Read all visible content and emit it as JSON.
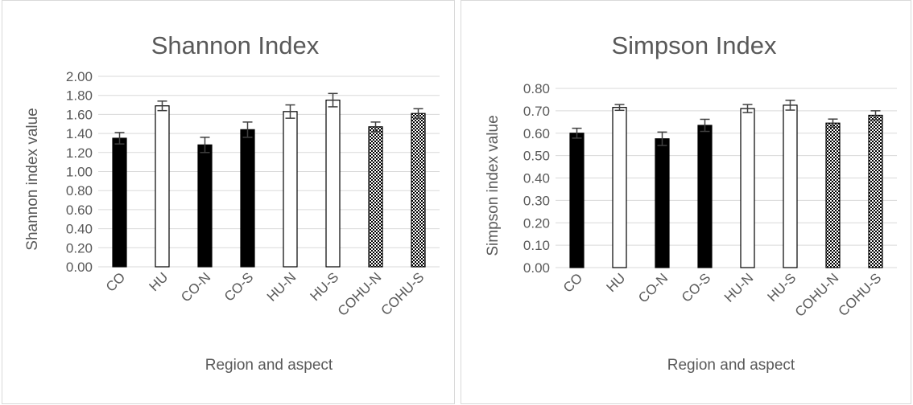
{
  "theme": {
    "text_color": "#595959",
    "grid_color": "#d9d9d9",
    "bar_color": "#000000",
    "error_bar_color": "#404040",
    "background": "#ffffff"
  },
  "chart_data": [
    {
      "type": "bar",
      "title": "Shannon Index",
      "xlabel": "Region and aspect",
      "ylabel": "Shannon index value",
      "categories": [
        "CO",
        "HU",
        "CO-N",
        "CO-S",
        "HU-N",
        "HU-S",
        "COHU-N",
        "COHU-S"
      ],
      "values": [
        1.35,
        1.69,
        1.28,
        1.44,
        1.63,
        1.75,
        1.47,
        1.61
      ],
      "error": [
        0.06,
        0.05,
        0.08,
        0.08,
        0.07,
        0.07,
        0.05,
        0.05
      ],
      "patterns": [
        "solid",
        "hollow",
        "solid",
        "solid",
        "hollow",
        "hollow",
        "checker",
        "checker"
      ],
      "ylim": [
        0,
        2
      ],
      "yticks": [
        "0.00",
        "0.20",
        "0.40",
        "0.60",
        "0.80",
        "1.00",
        "1.20",
        "1.40",
        "1.60",
        "1.80",
        "2.00"
      ],
      "grid": true,
      "legend": "none"
    },
    {
      "type": "bar",
      "title": "Simpson Index",
      "xlabel": "Region and aspect",
      "ylabel": "Simpson index value",
      "categories": [
        "CO",
        "HU",
        "CO-N",
        "CO-S",
        "HU-N",
        "HU-S",
        "COHU-N",
        "COHU-S"
      ],
      "values": [
        0.6,
        0.715,
        0.575,
        0.635,
        0.71,
        0.725,
        0.645,
        0.68
      ],
      "error": [
        0.022,
        0.013,
        0.03,
        0.027,
        0.018,
        0.022,
        0.018,
        0.02
      ],
      "patterns": [
        "solid",
        "hollow",
        "solid",
        "solid",
        "hollow",
        "hollow",
        "checker",
        "checker"
      ],
      "ylim": [
        0,
        0.8
      ],
      "yticks": [
        "0.00",
        "0.10",
        "0.20",
        "0.30",
        "0.40",
        "0.50",
        "0.60",
        "0.70",
        "0.80"
      ],
      "grid": true,
      "legend": "none"
    }
  ]
}
